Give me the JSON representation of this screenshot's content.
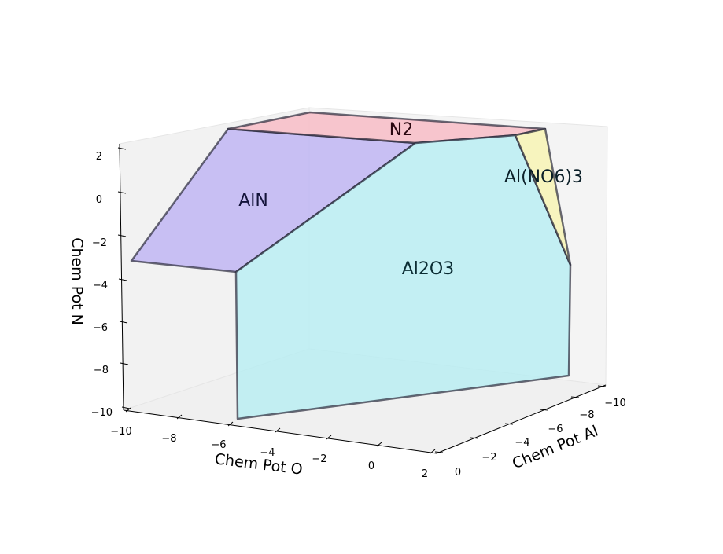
{
  "chart_data": {
    "type": "3d-polyhedron",
    "axes": {
      "x": {
        "label": "Chem Pot O",
        "range": [
          -10,
          2
        ],
        "ticks": [
          "−10",
          "−8",
          "−6",
          "−4",
          "−2",
          "0",
          "2"
        ]
      },
      "y": {
        "label": "Chem Pot Al",
        "range": [
          0,
          -10
        ],
        "ticks": [
          "0",
          "−2",
          "−4",
          "−6",
          "−8",
          "−10"
        ]
      },
      "z": {
        "label": "Chem Pot N",
        "range": [
          -10,
          2
        ],
        "ticks": [
          "−10",
          "−8",
          "−6",
          "−4",
          "−2",
          "0",
          "2"
        ]
      }
    },
    "grid": false,
    "regions": [
      {
        "name": "AlN",
        "color": "#b9aef3"
      },
      {
        "name": "N2",
        "color": "#f8b9c3"
      },
      {
        "name": "Al2O3",
        "color": "#b7eef2"
      },
      {
        "name": "Al(NO6)3",
        "color": "#f7f3b4"
      }
    ]
  }
}
